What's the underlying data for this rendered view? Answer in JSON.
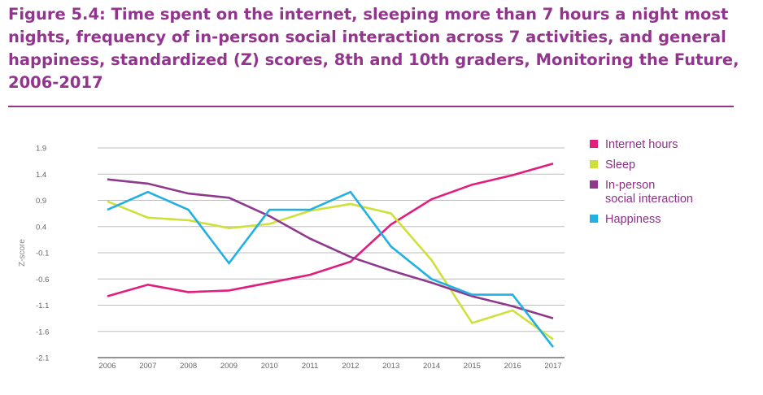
{
  "figure": {
    "title": "Figure 5.4: Time spent on the internet, sleeping more than 7 hours a night most nights, frequency of in-person social interaction across 7 activities, and general happiness, standardized (Z) scores, 8th and 10th graders, Monitoring the Future, 2006-2017"
  },
  "colors": {
    "title": "#93348f",
    "grid": "#bdbdbd",
    "axis": "#555555"
  },
  "chart_data": {
    "type": "line",
    "title": "",
    "xlabel": "",
    "ylabel": "Z-score",
    "x": [
      2006,
      2007,
      2008,
      2009,
      2010,
      2011,
      2012,
      2013,
      2014,
      2015,
      2016,
      2017
    ],
    "x_tick_labels": [
      "2006",
      "2007",
      "2008",
      "2009",
      "2010",
      "2011",
      "2012",
      "2013",
      "2014",
      "2015",
      "2016",
      "2017"
    ],
    "y_ticks": [
      1.9,
      1.4,
      0.9,
      0.4,
      -0.1,
      -0.6,
      -1.1,
      -1.6,
      -2.1
    ],
    "y_tick_labels": [
      "1.9",
      "1.4",
      "0.9",
      "0.4",
      "-0.1",
      "-0.6",
      "-1.1",
      "-1.6",
      "-2.1"
    ],
    "ylim": [
      -2.1,
      1.9
    ],
    "grid": true,
    "legend_position": "right",
    "series": [
      {
        "name": "Internet hours",
        "legend_lines": [
          "Internet hours"
        ],
        "color": "#e11d7e",
        "values": [
          -0.93,
          -0.71,
          -0.85,
          -0.82,
          -0.67,
          -0.52,
          -0.27,
          0.44,
          0.92,
          1.2,
          1.38,
          1.6
        ]
      },
      {
        "name": "Sleep",
        "legend_lines": [
          "Sleep"
        ],
        "color": "#cfe03a",
        "values": [
          0.88,
          0.57,
          0.52,
          0.37,
          0.45,
          0.7,
          0.83,
          0.65,
          -0.24,
          -1.44,
          -1.2,
          -1.75
        ]
      },
      {
        "name": "In-person social interaction",
        "legend_lines": [
          "In-person",
          "social interaction"
        ],
        "color": "#8e3a8c",
        "values": [
          1.3,
          1.22,
          1.03,
          0.95,
          0.6,
          0.17,
          -0.18,
          -0.44,
          -0.67,
          -0.93,
          -1.12,
          -1.35
        ]
      },
      {
        "name": "Happiness",
        "legend_lines": [
          "Happiness"
        ],
        "color": "#22b0e3",
        "values": [
          0.72,
          1.06,
          0.72,
          -0.3,
          0.72,
          0.72,
          1.06,
          0.02,
          -0.6,
          -0.9,
          -0.9,
          -1.9
        ]
      }
    ]
  }
}
